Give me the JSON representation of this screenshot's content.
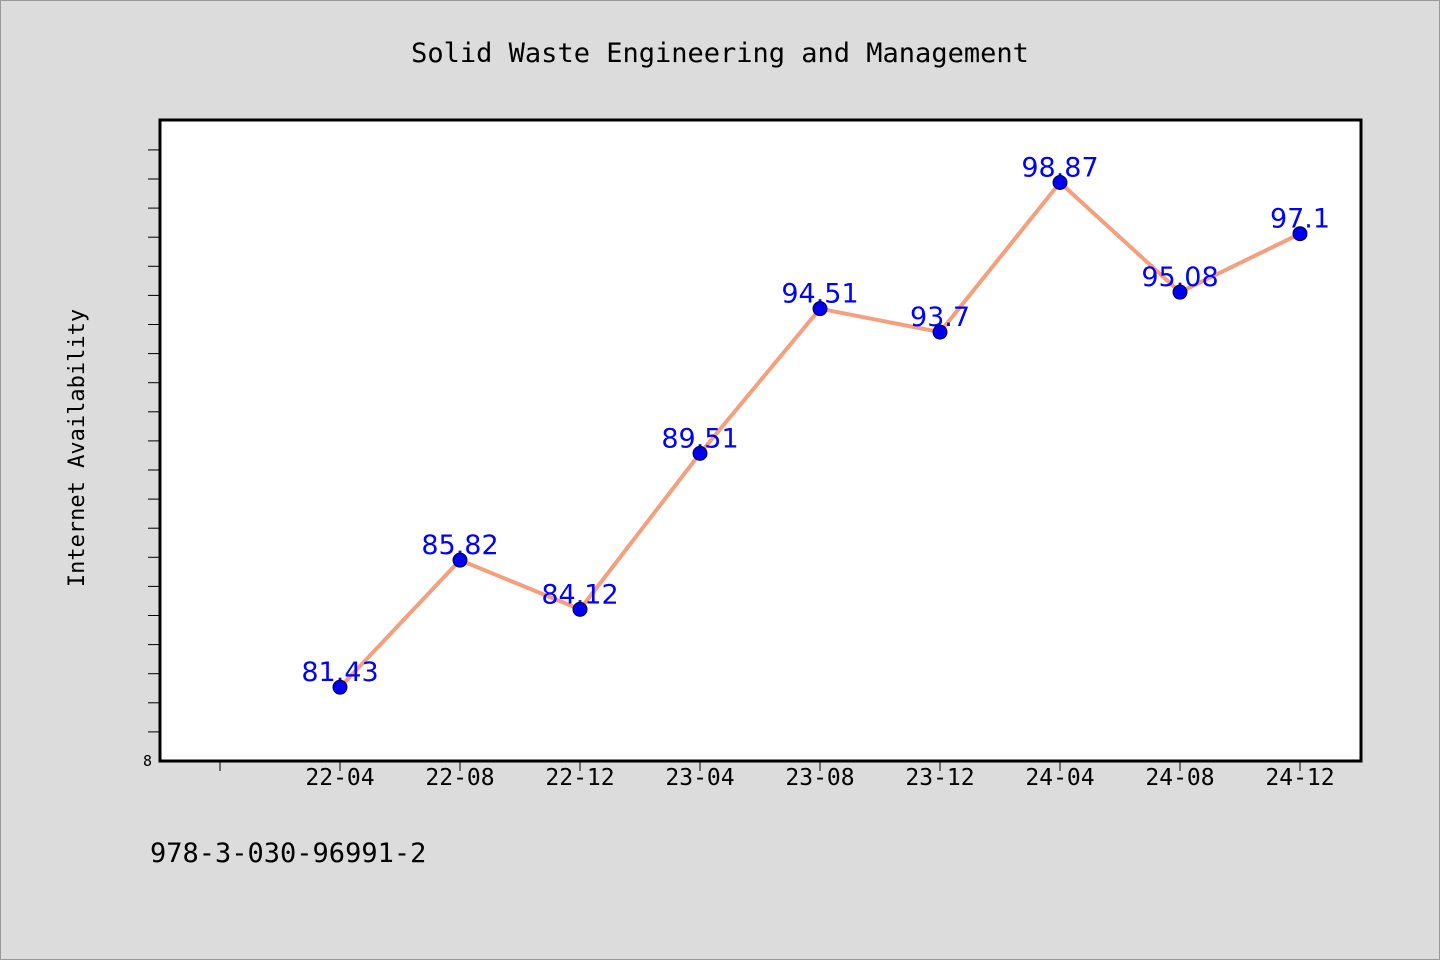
{
  "chart_data": {
    "type": "line",
    "title": "Solid Waste Engineering and Management",
    "xlabel": "",
    "ylabel": "Internet Availability",
    "categories": [
      "22-04",
      "22-08",
      "22-12",
      "23-04",
      "23-08",
      "23-12",
      "24-04",
      "24-08",
      "24-12"
    ],
    "series": [
      {
        "values": [
          81.43,
          85.82,
          84.12,
          89.51,
          94.51,
          93.7,
          98.87,
          95.08,
          97.1
        ],
        "data_labels": [
          "81.43",
          "85.82",
          "84.12",
          "89.51",
          "94.51",
          "93.7",
          "98.87",
          "95.08",
          "97.1"
        ],
        "line_color": "#f4a07e",
        "marker_color": "#0000ee",
        "label_color": "#0000ff"
      }
    ],
    "ylim": [
      78.88,
      101.03
    ],
    "yticks_labeled": [
      {
        "value": 78.88,
        "label": "8"
      }
    ],
    "grid": false,
    "legend": "none",
    "plot_background": "#ffffff",
    "page_background": "#dcdcdc"
  },
  "footer_text": "978-3-030-96991-2"
}
